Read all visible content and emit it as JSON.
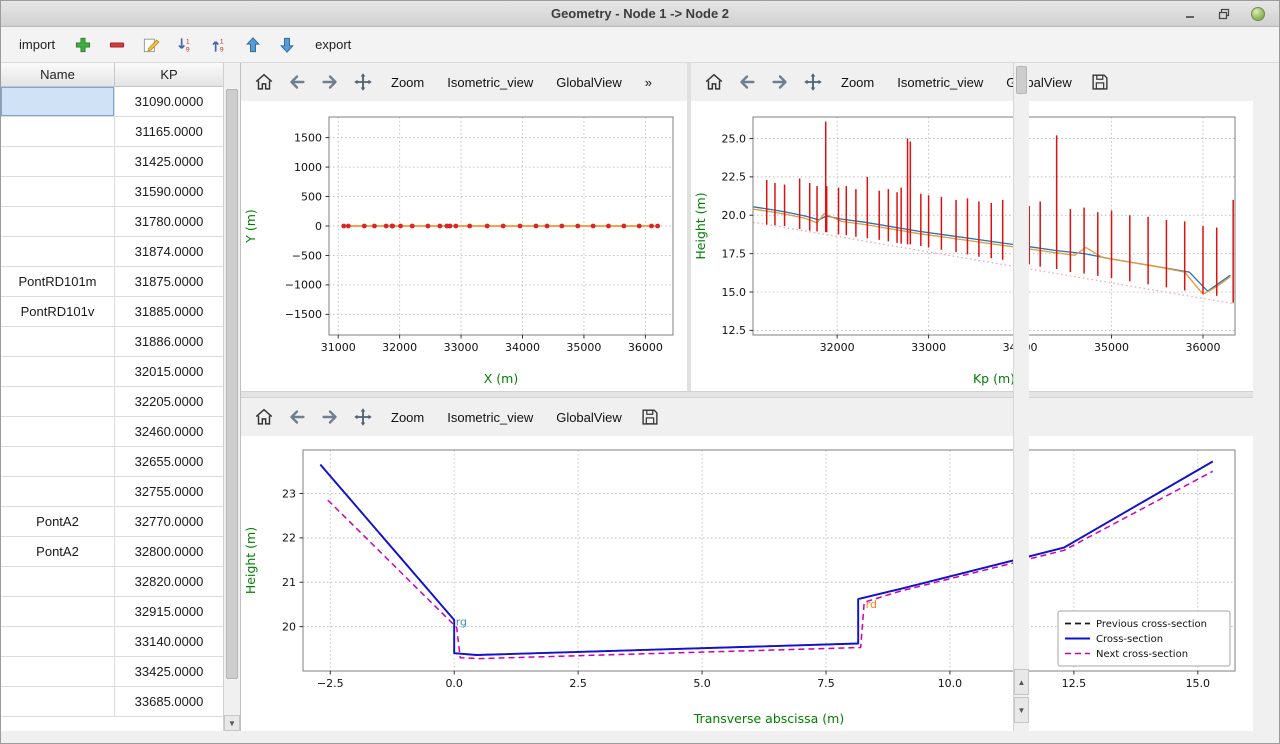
{
  "window": {
    "title": "Geometry - Node 1 -> Node 2"
  },
  "icons": {
    "overflow": "»",
    "scroll_up": "▲",
    "scroll_down": "▼",
    "sort_first": "1",
    "sort_last": "9"
  },
  "toolbar": {
    "import_label": "import",
    "export_label": "export"
  },
  "plot_toolbar": {
    "zoom": "Zoom",
    "isometric": "Isometric_view",
    "globalview": "GlobalView"
  },
  "table": {
    "columns": [
      "Name",
      "KP"
    ],
    "selected_row": 0,
    "rows": [
      {
        "name": "",
        "kp": "31090.0000"
      },
      {
        "name": "",
        "kp": "31165.0000"
      },
      {
        "name": "",
        "kp": "31425.0000"
      },
      {
        "name": "",
        "kp": "31590.0000"
      },
      {
        "name": "",
        "kp": "31780.0000"
      },
      {
        "name": "",
        "kp": "31874.0000"
      },
      {
        "name": "PontRD101m",
        "kp": "31875.0000"
      },
      {
        "name": "PontRD101v",
        "kp": "31885.0000"
      },
      {
        "name": "",
        "kp": "31886.0000"
      },
      {
        "name": "",
        "kp": "32015.0000"
      },
      {
        "name": "",
        "kp": "32205.0000"
      },
      {
        "name": "",
        "kp": "32460.0000"
      },
      {
        "name": "",
        "kp": "32655.0000"
      },
      {
        "name": "",
        "kp": "32755.0000"
      },
      {
        "name": "PontA2",
        "kp": "32770.0000"
      },
      {
        "name": "PontA2",
        "kp": "32800.0000"
      },
      {
        "name": "",
        "kp": "32820.0000"
      },
      {
        "name": "",
        "kp": "32915.0000"
      },
      {
        "name": "",
        "kp": "33140.0000"
      },
      {
        "name": "",
        "kp": "33425.0000"
      },
      {
        "name": "",
        "kp": "33685.0000"
      }
    ]
  },
  "chart_data": [
    {
      "id": "plan",
      "type": "scatter",
      "title": "",
      "xlabel": "X (m)",
      "ylabel": "Y (m)",
      "axis_label_color": "#007f00",
      "xlim": [
        30850,
        36450
      ],
      "ylim": [
        -1850,
        1850
      ],
      "xticks": [
        31000,
        32000,
        33000,
        34000,
        35000,
        36000
      ],
      "xtick_labels": [
        "31000",
        "32000",
        "33000",
        "34000",
        "35000",
        "36000"
      ],
      "yticks": [
        -1500,
        -1000,
        -500,
        0,
        500,
        1000,
        1500
      ],
      "ytick_labels": [
        "−1500",
        "−1000",
        "−500",
        "0",
        "500",
        "1000",
        "1500"
      ],
      "grid": true,
      "series": [
        {
          "name": "channel-axis",
          "type": "line",
          "color": "#ff7f0e",
          "width": 1.4,
          "points": [
            [
              31090,
              0
            ],
            [
              36200,
              0
            ]
          ]
        },
        {
          "name": "cross-section-markers",
          "type": "scatter",
          "color": "#d62728",
          "marker_size": 2.4,
          "points": [
            [
              31090,
              0
            ],
            [
              31165,
              0
            ],
            [
              31425,
              0
            ],
            [
              31590,
              0
            ],
            [
              31780,
              0
            ],
            [
              31875,
              0
            ],
            [
              31886,
              0
            ],
            [
              32015,
              0
            ],
            [
              32205,
              0
            ],
            [
              32460,
              0
            ],
            [
              32655,
              0
            ],
            [
              32770,
              0
            ],
            [
              32820,
              0
            ],
            [
              32915,
              0
            ],
            [
              33140,
              0
            ],
            [
              33425,
              0
            ],
            [
              33685,
              0
            ],
            [
              33960,
              0
            ],
            [
              34220,
              0
            ],
            [
              34400,
              0
            ],
            [
              34640,
              0
            ],
            [
              34900,
              0
            ],
            [
              35150,
              0
            ],
            [
              35400,
              0
            ],
            [
              35650,
              0
            ],
            [
              35900,
              0
            ],
            [
              36100,
              0
            ],
            [
              36200,
              0
            ]
          ]
        }
      ]
    },
    {
      "id": "profile",
      "type": "line",
      "title": "",
      "xlabel": "Kp (m)",
      "ylabel": "Height (m)",
      "axis_label_color": "#007f00",
      "xlim": [
        31080,
        36350
      ],
      "ylim": [
        12.2,
        26.4
      ],
      "xticks": [
        32000,
        33000,
        34000,
        35000,
        36000
      ],
      "xtick_labels": [
        "32000",
        "33000",
        "34000",
        "35000",
        "36000"
      ],
      "yticks": [
        12.5,
        15.0,
        17.5,
        20.0,
        22.5,
        25.0
      ],
      "ytick_labels": [
        "12.5",
        "15.0",
        "17.5",
        "20.0",
        "22.5",
        "25.0"
      ],
      "grid": true,
      "series": [
        {
          "name": "bed-profile",
          "type": "line",
          "color": "#f0a8bc",
          "dash": "dot",
          "width": 1.3,
          "points": [
            [
              31080,
              19.55
            ],
            [
              36330,
              14.25
            ]
          ]
        },
        {
          "name": "left-bank-profile",
          "type": "line",
          "color": "#1f77b4",
          "width": 1.3,
          "points": [
            [
              31080,
              20.55
            ],
            [
              31250,
              20.4
            ],
            [
              31450,
              20.2
            ],
            [
              31650,
              19.95
            ],
            [
              31800,
              19.7
            ],
            [
              31880,
              19.95
            ],
            [
              32050,
              19.75
            ],
            [
              32300,
              19.55
            ],
            [
              32600,
              19.25
            ],
            [
              32900,
              18.95
            ],
            [
              33200,
              18.7
            ],
            [
              33500,
              18.45
            ],
            [
              33800,
              18.2
            ],
            [
              34100,
              17.95
            ],
            [
              34400,
              17.7
            ],
            [
              34700,
              17.5
            ],
            [
              35000,
              17.15
            ],
            [
              35300,
              16.85
            ],
            [
              35600,
              16.55
            ],
            [
              35850,
              16.3
            ],
            [
              36050,
              15.05
            ],
            [
              36300,
              16.1
            ]
          ]
        },
        {
          "name": "right-bank-profile",
          "type": "line",
          "color": "#e8973a",
          "width": 1.3,
          "points": [
            [
              31080,
              20.4
            ],
            [
              31250,
              20.25
            ],
            [
              31450,
              20.05
            ],
            [
              31650,
              19.8
            ],
            [
              31780,
              19.5
            ],
            [
              31860,
              20.1
            ],
            [
              32050,
              19.6
            ],
            [
              32300,
              19.4
            ],
            [
              32600,
              19.1
            ],
            [
              32900,
              18.8
            ],
            [
              33200,
              18.55
            ],
            [
              33500,
              18.3
            ],
            [
              33800,
              18.05
            ],
            [
              34100,
              17.8
            ],
            [
              34400,
              17.55
            ],
            [
              34600,
              17.4
            ],
            [
              34720,
              17.9
            ],
            [
              34900,
              17.25
            ],
            [
              35200,
              16.95
            ],
            [
              35500,
              16.65
            ],
            [
              35800,
              16.3
            ],
            [
              36000,
              14.85
            ],
            [
              36150,
              15.35
            ],
            [
              36300,
              16.0
            ]
          ]
        },
        {
          "name": "cross-section-structures",
          "type": "vlines",
          "color": "#e01010",
          "width": 1.5,
          "lines": [
            [
              31230,
              19.4,
              22.3
            ],
            [
              31320,
              19.35,
              22.1
            ],
            [
              31425,
              19.3,
              22.0
            ],
            [
              31590,
              19.1,
              22.4
            ],
            [
              31700,
              19.0,
              22.1
            ],
            [
              31780,
              18.95,
              21.9
            ],
            [
              31875,
              18.9,
              26.1
            ],
            [
              31886,
              18.9,
              21.9
            ],
            [
              32015,
              18.75,
              21.8
            ],
            [
              32100,
              18.7,
              21.9
            ],
            [
              32205,
              18.6,
              21.7
            ],
            [
              32330,
              18.5,
              22.5
            ],
            [
              32460,
              18.4,
              21.6
            ],
            [
              32560,
              18.3,
              21.7
            ],
            [
              32655,
              18.2,
              21.5
            ],
            [
              32700,
              18.15,
              21.8
            ],
            [
              32770,
              18.1,
              25.0
            ],
            [
              32800,
              18.1,
              24.8
            ],
            [
              32915,
              18.0,
              21.4
            ],
            [
              33000,
              17.9,
              21.3
            ],
            [
              33140,
              17.75,
              21.2
            ],
            [
              33300,
              17.6,
              21.0
            ],
            [
              33425,
              17.45,
              21.1
            ],
            [
              33550,
              17.3,
              20.9
            ],
            [
              33685,
              17.2,
              20.8
            ],
            [
              33810,
              17.1,
              21.0
            ],
            [
              33960,
              16.9,
              20.7
            ],
            [
              34100,
              16.8,
              20.6
            ],
            [
              34220,
              16.65,
              20.9
            ],
            [
              34400,
              16.5,
              25.2
            ],
            [
              34550,
              16.3,
              20.4
            ],
            [
              34700,
              16.2,
              20.5
            ],
            [
              34850,
              16.05,
              20.2
            ],
            [
              35000,
              15.9,
              20.3
            ],
            [
              35200,
              15.7,
              20.0
            ],
            [
              35400,
              15.5,
              19.9
            ],
            [
              35600,
              15.3,
              19.7
            ],
            [
              35800,
              15.1,
              19.6
            ],
            [
              36000,
              14.9,
              19.3
            ],
            [
              36150,
              14.75,
              19.2
            ],
            [
              36330,
              14.3,
              21.0
            ]
          ]
        }
      ]
    },
    {
      "id": "cross",
      "type": "line",
      "title": "",
      "xlabel": "Transverse abscissa (m)",
      "ylabel": "Height (m)",
      "axis_label_color": "#007f00",
      "xlim": [
        -3.05,
        15.75
      ],
      "ylim": [
        19.0,
        23.98
      ],
      "xticks": [
        -2.5,
        0,
        2.5,
        5,
        7.5,
        10,
        12.5,
        15
      ],
      "xtick_labels": [
        "−2.5",
        "0.0",
        "2.5",
        "5.0",
        "7.5",
        "10.0",
        "12.5",
        "15.0"
      ],
      "yticks": [
        20,
        21,
        22,
        23
      ],
      "ytick_labels": [
        "20",
        "21",
        "22",
        "23"
      ],
      "grid": true,
      "series": [
        {
          "name": "Previous cross-section",
          "type": "line",
          "color": "#1a1a1a",
          "dash": "dash",
          "width": 1.6,
          "points": [
            [
              -2.7,
              23.65
            ],
            [
              0,
              20.15
            ],
            [
              0,
              19.4
            ],
            [
              0.45,
              19.36
            ],
            [
              8.15,
              19.62
            ],
            [
              8.15,
              20.62
            ],
            [
              9.0,
              20.85
            ],
            [
              12.3,
              21.78
            ],
            [
              15.3,
              23.72
            ]
          ]
        },
        {
          "name": "Cross-section",
          "type": "line",
          "color": "#1212cc",
          "width": 1.9,
          "points": [
            [
              -2.7,
              23.65
            ],
            [
              0,
              20.15
            ],
            [
              0,
              19.4
            ],
            [
              0.45,
              19.36
            ],
            [
              8.15,
              19.62
            ],
            [
              8.15,
              20.62
            ],
            [
              9.0,
              20.85
            ],
            [
              12.3,
              21.78
            ],
            [
              15.3,
              23.72
            ]
          ]
        },
        {
          "name": "Next cross-section",
          "type": "line",
          "color": "#cc00bb",
          "dash": "dash",
          "width": 1.5,
          "points": [
            [
              -2.55,
              22.85
            ],
            [
              0.05,
              19.98
            ],
            [
              0.12,
              19.3
            ],
            [
              0.5,
              19.28
            ],
            [
              8.2,
              19.53
            ],
            [
              8.27,
              20.55
            ],
            [
              9.0,
              20.8
            ],
            [
              12.3,
              21.72
            ],
            [
              15.3,
              23.5
            ]
          ]
        }
      ],
      "texts": [
        {
          "x": 0.03,
          "y": 20.02,
          "text": "rg",
          "color": "#3d8dc4"
        },
        {
          "x": 8.3,
          "y": 20.42,
          "text": "rd",
          "color": "#ff7f0e"
        }
      ],
      "legend": {
        "position": "lower right",
        "width": 172,
        "entries": [
          {
            "label": "Previous cross-section",
            "color": "#1a1a1a",
            "dash": "dash",
            "width": 1.8
          },
          {
            "label": "Cross-section",
            "color": "#1212cc",
            "width": 2
          },
          {
            "label": "Next cross-section",
            "color": "#cc00bb",
            "dash": "dash",
            "width": 1.6
          }
        ]
      }
    }
  ]
}
